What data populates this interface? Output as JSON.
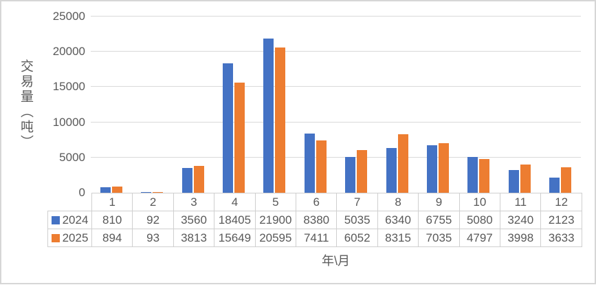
{
  "chart_data": {
    "type": "bar",
    "title": "",
    "ylabel": "交易量（吨）",
    "xlabel": "年\\月",
    "categories": [
      "1",
      "2",
      "3",
      "4",
      "5",
      "6",
      "7",
      "8",
      "9",
      "10",
      "11",
      "12"
    ],
    "series": [
      {
        "name": "2024",
        "color": "#4472C4",
        "values": [
          810,
          92,
          3560,
          18405,
          21900,
          8380,
          5035,
          6340,
          6755,
          5080,
          3240,
          2123
        ]
      },
      {
        "name": "2025",
        "color": "#ED7D31",
        "values": [
          894,
          93,
          3813,
          15649,
          20595,
          7411,
          6052,
          8315,
          7035,
          4797,
          3998,
          3633
        ]
      }
    ],
    "y_ticks": [
      0,
      5000,
      10000,
      15000,
      20000,
      25000
    ],
    "ylim": [
      0,
      25000
    ],
    "grid": true,
    "gridline_color": "#d9d9d9",
    "text_color": "#595959",
    "legend_position": "table-left"
  }
}
